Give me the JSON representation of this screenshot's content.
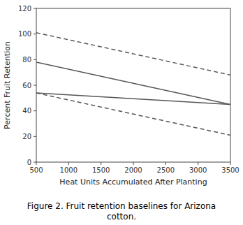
{
  "chart_data": {
    "type": "line",
    "xlabel": "Heat Units Accumulated After Planting",
    "ylabel": "Percent Fruit Retention",
    "caption": "Figure 2.  Fruit retention baselines for Arizona\ncotton.",
    "x": [
      500,
      3500
    ],
    "series": [
      {
        "color": "#555555",
        "line_style": "dashed",
        "values": [
          101,
          68
        ]
      },
      {
        "color": "#555555",
        "line_style": "solid",
        "values": [
          78,
          45
        ]
      },
      {
        "color": "#555555",
        "line_style": "solid",
        "values": [
          54,
          45
        ]
      },
      {
        "color": "#555555",
        "line_style": "dashed",
        "values": [
          54,
          21
        ]
      }
    ],
    "xlim": [
      500,
      3500
    ],
    "ylim": [
      0,
      120
    ],
    "xticks": [
      500,
      1000,
      1500,
      2000,
      2500,
      3000,
      3500
    ],
    "yticks": [
      0,
      20,
      40,
      60,
      80,
      100,
      120
    ],
    "grid": false
  }
}
